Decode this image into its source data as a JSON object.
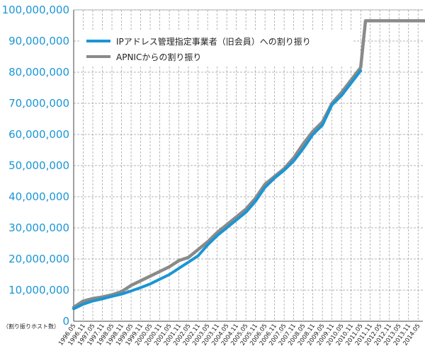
{
  "chart_data": {
    "type": "line",
    "title": "",
    "unit_label": "（割り振りホスト数）",
    "xlabel": "",
    "ylabel": "",
    "ylim": [
      0,
      100000000
    ],
    "y_ticks": [
      "0",
      "10,000,000",
      "20,000,000",
      "30,000,000",
      "40,000,000",
      "50,000,000",
      "60,000,000",
      "70,000,000",
      "80,000,000",
      "90,000,000",
      "100,000,000"
    ],
    "x_ticks": [
      "1996.05",
      "1996.11",
      "1997.05",
      "1997.11",
      "1998.05",
      "1998.11",
      "1999.05",
      "1999.11",
      "2000.05",
      "2000.11",
      "2001.05",
      "2001.11",
      "2002.05",
      "2002.11",
      "2003.05",
      "2003.11",
      "2004.05",
      "2004.11",
      "2005.05",
      "2005.11",
      "2006.05",
      "2006.11",
      "2007.05",
      "2007.11",
      "2008.05",
      "2008.11",
      "2009.05",
      "2009.11",
      "2010.05",
      "2010.11",
      "2011.05",
      "2011.11",
      "2012.05",
      "2012.11",
      "2013.05",
      "2013.11",
      "2014.05"
    ],
    "grid": true,
    "legend_placement": "top-left",
    "colors": {
      "blue": "#1a96d4",
      "gray": "#8a8a8a"
    },
    "series": [
      {
        "name": "IPアドレス管理指定事業者（旧会員）への割り振り",
        "color": "#1a96d4",
        "x": [
          "1996.05",
          "1996.11",
          "1997.05",
          "1997.11",
          "1998.05",
          "1998.11",
          "1999.05",
          "1999.11",
          "2000.05",
          "2000.11",
          "2001.05",
          "2001.11",
          "2002.05",
          "2002.11",
          "2003.05",
          "2003.11",
          "2004.05",
          "2004.11",
          "2005.05",
          "2005.11",
          "2006.05",
          "2006.11",
          "2007.05",
          "2007.11",
          "2008.05",
          "2008.11",
          "2009.05",
          "2009.11",
          "2010.05",
          "2010.11",
          "2011.05"
        ],
        "values": [
          4000000,
          5500000,
          6500000,
          7200000,
          8000000,
          8700000,
          9700000,
          10800000,
          12000000,
          13500000,
          15000000,
          17000000,
          19000000,
          21000000,
          24500000,
          27500000,
          30000000,
          32500000,
          35000000,
          38500000,
          43000000,
          46000000,
          48500000,
          51500000,
          55500000,
          60000000,
          63000000,
          69500000,
          72500000,
          76500000,
          80500000
        ]
      },
      {
        "name": "APNICからの割り振り",
        "color": "#8a8a8a",
        "x": [
          "1996.05",
          "1996.11",
          "1997.05",
          "1997.11",
          "1998.05",
          "1998.11",
          "1999.05",
          "1999.11",
          "2000.05",
          "2000.11",
          "2001.05",
          "2001.11",
          "2002.05",
          "2002.11",
          "2003.05",
          "2003.11",
          "2004.05",
          "2004.11",
          "2005.05",
          "2005.11",
          "2006.05",
          "2006.11",
          "2007.05",
          "2007.11",
          "2008.05",
          "2008.11",
          "2009.05",
          "2009.11",
          "2010.05",
          "2010.11",
          "2011.05",
          "2011.08",
          "2011.11",
          "2012.05",
          "2012.11",
          "2013.05",
          "2013.11",
          "2014.05",
          "2014.11"
        ],
        "values": [
          4500000,
          6500000,
          7300000,
          7800000,
          8500000,
          9500000,
          11500000,
          13000000,
          14500000,
          16000000,
          17500000,
          19500000,
          20500000,
          23000000,
          25500000,
          28500000,
          31000000,
          33500000,
          36000000,
          39500000,
          44000000,
          46500000,
          49000000,
          52500000,
          57000000,
          61000000,
          64000000,
          70000000,
          73500000,
          77500000,
          81500000,
          96500000,
          96500000,
          96500000,
          96500000,
          96500000,
          96500000,
          96500000,
          96500000
        ]
      }
    ]
  }
}
